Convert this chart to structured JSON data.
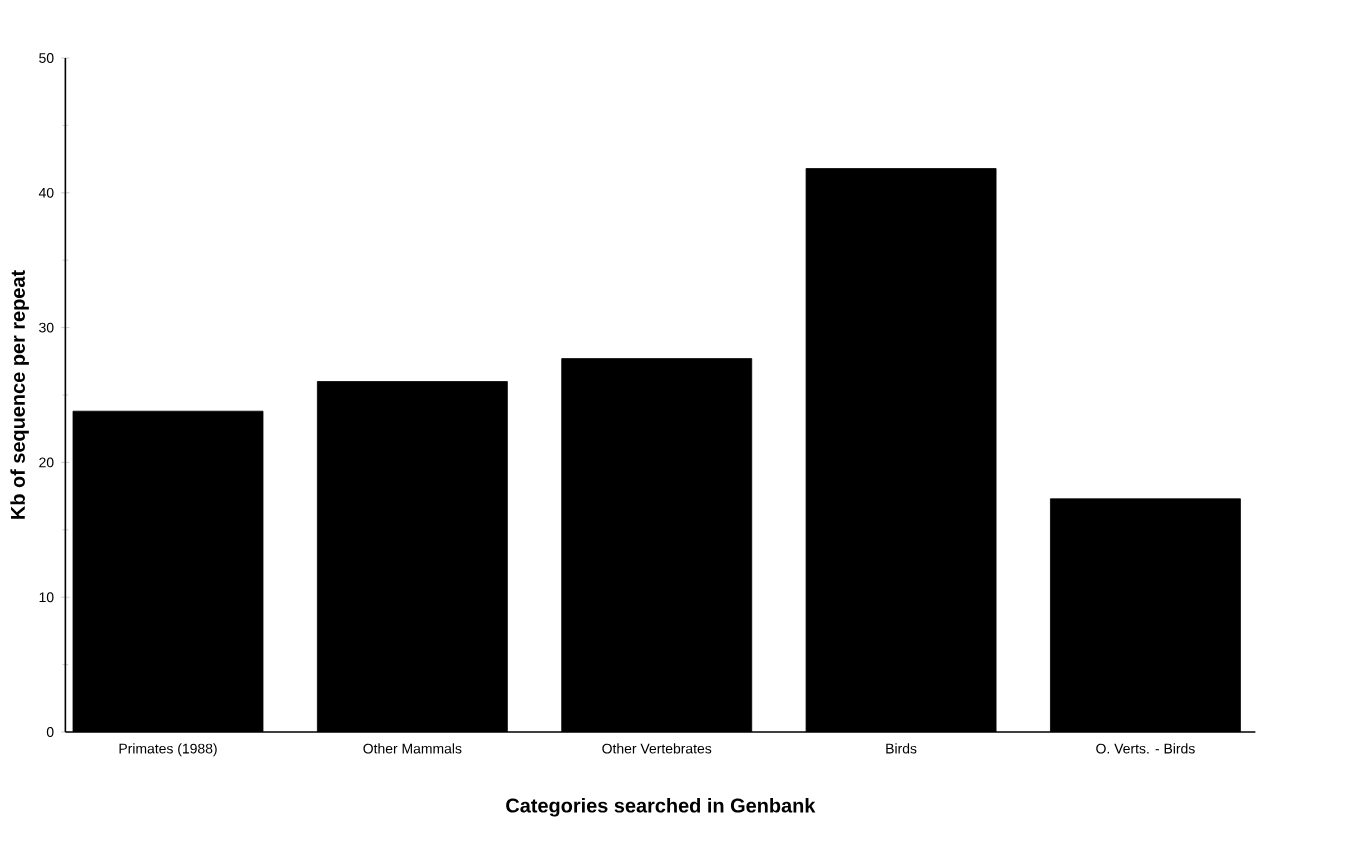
{
  "chart_data": {
    "type": "bar",
    "xlabel": "Categories searched in Genbank",
    "ylabel": "Kb of sequence per repeat",
    "categories": [
      "Primates (1988)",
      "Other Mammals",
      "Other Vertebrates",
      "Birds",
      "O. Verts. - Birds"
    ],
    "values": [
      23.8,
      26.0,
      27.7,
      41.8,
      17.3
    ],
    "color": "#000000",
    "ylim": [
      0,
      50
    ],
    "yticks": [
      0,
      10,
      20,
      30,
      40,
      50
    ],
    "grid": false
  }
}
